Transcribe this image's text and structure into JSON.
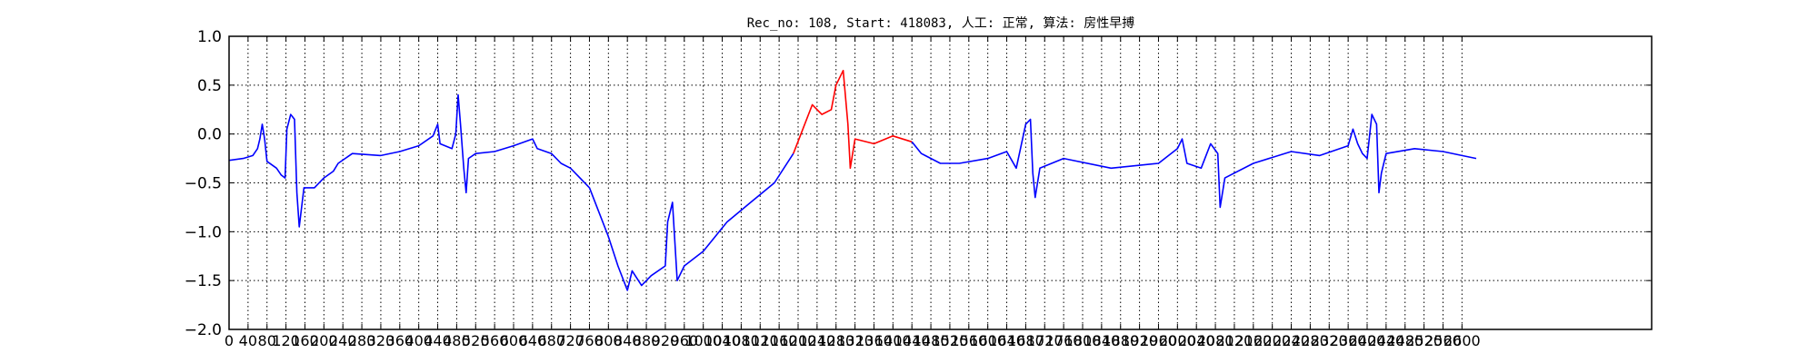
{
  "chart_data": {
    "type": "line",
    "title": "Rec_no: 108, Start: 418083, 人工: 正常, 算法: 房性早搏",
    "xlabel": "",
    "ylabel": "",
    "xlim": [
      0,
      3000
    ],
    "ylim": [
      -2.0,
      1.0
    ],
    "grid": true,
    "legend": "none",
    "ytick_labels": [
      "1.0",
      "0.5",
      "0.0",
      "−0.5",
      "−1.0",
      "−1.5",
      "−2.0"
    ],
    "ytick_values": [
      1.0,
      0.5,
      0.0,
      -0.5,
      -1.0,
      -1.5,
      -2.0
    ],
    "xtick_values": [
      0,
      40,
      80,
      120,
      160,
      200,
      240,
      280,
      320,
      360,
      400,
      440,
      480,
      520,
      560,
      600,
      640,
      680,
      720,
      760,
      800,
      840,
      880,
      920,
      960,
      1000,
      1040,
      1080,
      1120,
      1160,
      1200,
      1240,
      1280,
      1320,
      1360,
      1400,
      1440,
      1480,
      1520,
      1560,
      1600,
      1640,
      1680,
      1720,
      1760,
      1800,
      1840,
      1880,
      1920,
      1960,
      2000,
      2040,
      2080,
      2120,
      2160,
      2200,
      2240,
      2280,
      2320,
      2360,
      2400,
      2440,
      2480,
      2520,
      2560,
      2600
    ],
    "series": [
      {
        "color": "#0000ff",
        "points": [
          [
            0,
            -0.27
          ],
          [
            30,
            -0.25
          ],
          [
            50,
            -0.22
          ],
          [
            60,
            -0.15
          ],
          [
            65,
            -0.05
          ],
          [
            70,
            0.1
          ],
          [
            75,
            -0.05
          ],
          [
            80,
            -0.28
          ],
          [
            100,
            -0.35
          ],
          [
            110,
            -0.42
          ],
          [
            118,
            -0.45
          ],
          [
            122,
            0.05
          ],
          [
            130,
            0.2
          ],
          [
            138,
            0.15
          ],
          [
            143,
            -0.6
          ],
          [
            148,
            -0.95
          ],
          [
            153,
            -0.75
          ],
          [
            158,
            -0.55
          ],
          [
            180,
            -0.55
          ],
          [
            200,
            -0.45
          ],
          [
            220,
            -0.38
          ],
          [
            230,
            -0.3
          ],
          [
            260,
            -0.2
          ],
          [
            320,
            -0.22
          ],
          [
            360,
            -0.18
          ],
          [
            400,
            -0.12
          ],
          [
            430,
            -0.02
          ],
          [
            440,
            0.1
          ],
          [
            445,
            -0.1
          ],
          [
            470,
            -0.15
          ],
          [
            478,
            0.0
          ],
          [
            483,
            0.4
          ],
          [
            488,
            0.1
          ],
          [
            495,
            -0.35
          ],
          [
            500,
            -0.6
          ],
          [
            505,
            -0.25
          ],
          [
            520,
            -0.2
          ],
          [
            560,
            -0.18
          ],
          [
            600,
            -0.12
          ],
          [
            640,
            -0.05
          ],
          [
            650,
            -0.15
          ],
          [
            680,
            -0.2
          ],
          [
            700,
            -0.3
          ],
          [
            720,
            -0.35
          ],
          [
            760,
            -0.55
          ],
          [
            780,
            -0.8
          ],
          [
            800,
            -1.05
          ],
          [
            820,
            -1.35
          ],
          [
            840,
            -1.6
          ],
          [
            850,
            -1.4
          ],
          [
            870,
            -1.55
          ],
          [
            890,
            -1.45
          ],
          [
            920,
            -1.35
          ],
          [
            925,
            -0.9
          ],
          [
            935,
            -0.7
          ],
          [
            940,
            -1.1
          ],
          [
            945,
            -1.5
          ],
          [
            960,
            -1.35
          ],
          [
            1000,
            -1.2
          ],
          [
            1050,
            -0.9
          ],
          [
            1100,
            -0.7
          ],
          [
            1150,
            -0.5
          ],
          [
            1190,
            -0.2
          ]
        ]
      },
      {
        "color": "#ff0000",
        "points": [
          [
            1190,
            -0.2
          ],
          [
            1210,
            0.05
          ],
          [
            1230,
            0.3
          ],
          [
            1250,
            0.2
          ],
          [
            1270,
            0.25
          ],
          [
            1280,
            0.5
          ],
          [
            1295,
            0.65
          ],
          [
            1305,
            0.1
          ],
          [
            1310,
            -0.35
          ],
          [
            1320,
            -0.05
          ],
          [
            1360,
            -0.1
          ],
          [
            1400,
            -0.02
          ],
          [
            1440,
            -0.08
          ]
        ]
      },
      {
        "color": "#0000ff",
        "points": [
          [
            1440,
            -0.08
          ],
          [
            1460,
            -0.2
          ],
          [
            1500,
            -0.3
          ],
          [
            1540,
            -0.3
          ],
          [
            1600,
            -0.25
          ],
          [
            1640,
            -0.18
          ],
          [
            1660,
            -0.35
          ],
          [
            1680,
            0.1
          ],
          [
            1690,
            0.15
          ],
          [
            1695,
            -0.4
          ],
          [
            1700,
            -0.65
          ],
          [
            1710,
            -0.35
          ],
          [
            1760,
            -0.25
          ],
          [
            1860,
            -0.35
          ],
          [
            1960,
            -0.3
          ],
          [
            2000,
            -0.15
          ],
          [
            2010,
            -0.05
          ],
          [
            2020,
            -0.3
          ],
          [
            2050,
            -0.35
          ],
          [
            2070,
            -0.1
          ],
          [
            2085,
            -0.2
          ],
          [
            2090,
            -0.75
          ],
          [
            2100,
            -0.45
          ],
          [
            2160,
            -0.3
          ],
          [
            2240,
            -0.18
          ],
          [
            2300,
            -0.22
          ],
          [
            2360,
            -0.12
          ],
          [
            2370,
            0.05
          ],
          [
            2380,
            -0.1
          ],
          [
            2390,
            -0.2
          ],
          [
            2400,
            -0.25
          ],
          [
            2410,
            0.2
          ],
          [
            2420,
            0.1
          ],
          [
            2425,
            -0.6
          ],
          [
            2430,
            -0.4
          ],
          [
            2440,
            -0.2
          ],
          [
            2500,
            -0.15
          ],
          [
            2560,
            -0.18
          ],
          [
            2600,
            -0.22
          ],
          [
            2630,
            -0.25
          ]
        ]
      }
    ]
  }
}
